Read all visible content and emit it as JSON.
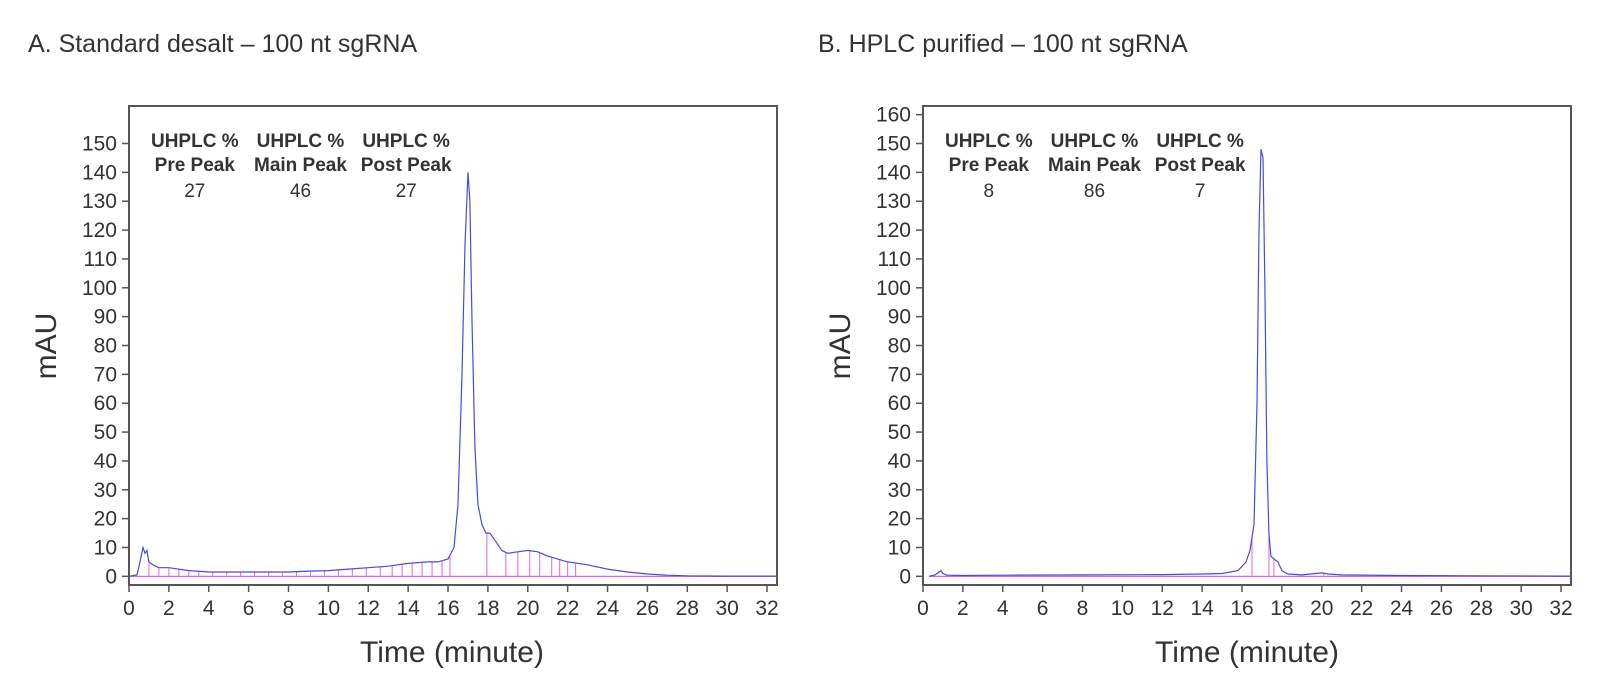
{
  "chart_data": [
    {
      "type": "line",
      "title": "A. Standard desalt – 100 nt sgRNA",
      "xlabel": "Time (minute)",
      "ylabel": "mAU",
      "xlim": [
        0,
        32.5
      ],
      "ylim": [
        -3,
        163
      ],
      "xticks": [
        0,
        2,
        4,
        6,
        8,
        10,
        12,
        14,
        16,
        18,
        20,
        22,
        24,
        26,
        28,
        30,
        32
      ],
      "yticks": [
        0,
        10,
        20,
        30,
        40,
        50,
        60,
        70,
        80,
        90,
        100,
        110,
        120,
        130,
        140,
        150
      ],
      "grid": false,
      "line_color": "#4b4bdc",
      "baseline_color": "#e06ad8",
      "stats": [
        {
          "label_line1": "UHPLC %",
          "label_line2": "Pre Peak",
          "value": "27",
          "x": 3.3
        },
        {
          "label_line1": "UHPLC %",
          "label_line2": "Main Peak",
          "value": "46",
          "x": 8.6
        },
        {
          "label_line1": "UHPLC %",
          "label_line2": "Post Peak",
          "value": "27",
          "x": 13.9
        }
      ],
      "x": [
        0,
        0.4,
        0.55,
        0.7,
        0.8,
        0.9,
        1.0,
        1.2,
        1.5,
        2,
        3,
        4,
        5,
        6,
        7,
        8,
        9,
        10,
        11,
        12,
        13,
        14,
        15,
        15.5,
        16,
        16.3,
        16.5,
        16.7,
        16.85,
        17.0,
        17.1,
        17.2,
        17.35,
        17.5,
        17.7,
        17.9,
        18.1,
        18.4,
        18.7,
        19,
        19.5,
        20,
        20.5,
        21,
        22,
        23,
        24,
        25,
        26,
        27,
        28,
        30,
        32.5
      ],
      "y": [
        0,
        0.5,
        5,
        10,
        8,
        9,
        5,
        4,
        3,
        3,
        2,
        1.5,
        1.5,
        1.5,
        1.5,
        1.5,
        1.8,
        2,
        2.5,
        3,
        3.5,
        4.5,
        5,
        5,
        6,
        10,
        25,
        70,
        115,
        140,
        130,
        90,
        45,
        25,
        18,
        15,
        15,
        12,
        9,
        8,
        8.5,
        9,
        8.5,
        7,
        5,
        4,
        2.5,
        1.5,
        0.8,
        0.4,
        0.2,
        0.1,
        0.1
      ],
      "peak_drops": [
        1.0,
        1.5,
        2.0,
        2.5,
        3.0,
        3.5,
        4.2,
        4.9,
        5.6,
        6.3,
        7.0,
        7.7,
        8.4,
        9.1,
        9.8,
        10.5,
        11.2,
        11.9,
        12.6,
        13.2,
        13.7,
        14.2,
        14.7,
        15.2,
        15.7,
        16.1,
        17.95,
        18.9,
        19.5,
        20.1,
        20.6,
        21.2,
        21.6,
        22.0,
        22.4
      ]
    },
    {
      "type": "line",
      "title": "B. HPLC purified – 100 nt sgRNA",
      "xlabel": "Time (minute)",
      "ylabel": "mAU",
      "xlim": [
        0,
        32.5
      ],
      "ylim": [
        -3,
        163
      ],
      "xticks": [
        0,
        2,
        4,
        6,
        8,
        10,
        12,
        14,
        16,
        18,
        20,
        22,
        24,
        26,
        28,
        30,
        32
      ],
      "yticks": [
        0,
        10,
        20,
        30,
        40,
        50,
        60,
        70,
        80,
        90,
        100,
        110,
        120,
        130,
        140,
        150,
        160
      ],
      "grid": false,
      "line_color": "#4b4bdc",
      "baseline_color": "#e06ad8",
      "stats": [
        {
          "label_line1": "UHPLC %",
          "label_line2": "Pre Peak",
          "value": "8",
          "x": 3.3
        },
        {
          "label_line1": "UHPLC %",
          "label_line2": "Main Peak",
          "value": "86",
          "x": 8.6
        },
        {
          "label_line1": "UHPLC %",
          "label_line2": "Post Peak",
          "value": "7",
          "x": 13.9
        }
      ],
      "x": [
        0.3,
        0.6,
        0.8,
        0.9,
        1.0,
        1.2,
        2,
        4,
        8,
        12,
        14,
        15,
        15.8,
        16.2,
        16.4,
        16.6,
        16.75,
        16.85,
        16.95,
        17.05,
        17.15,
        17.25,
        17.35,
        17.45,
        17.6,
        17.8,
        18.0,
        18.3,
        19,
        20,
        20.3,
        21,
        24,
        28,
        32.5
      ],
      "y": [
        0,
        0.5,
        1.5,
        2,
        1,
        0.4,
        0.3,
        0.4,
        0.5,
        0.6,
        0.8,
        1,
        2,
        5,
        9,
        18,
        60,
        120,
        148,
        145,
        100,
        40,
        15,
        7,
        6,
        5,
        2,
        0.8,
        0.5,
        1.2,
        0.8,
        0.5,
        0.3,
        0.2,
        0.1
      ],
      "peak_drops": [
        16.5,
        17.35,
        17.6,
        20.1
      ]
    }
  ]
}
